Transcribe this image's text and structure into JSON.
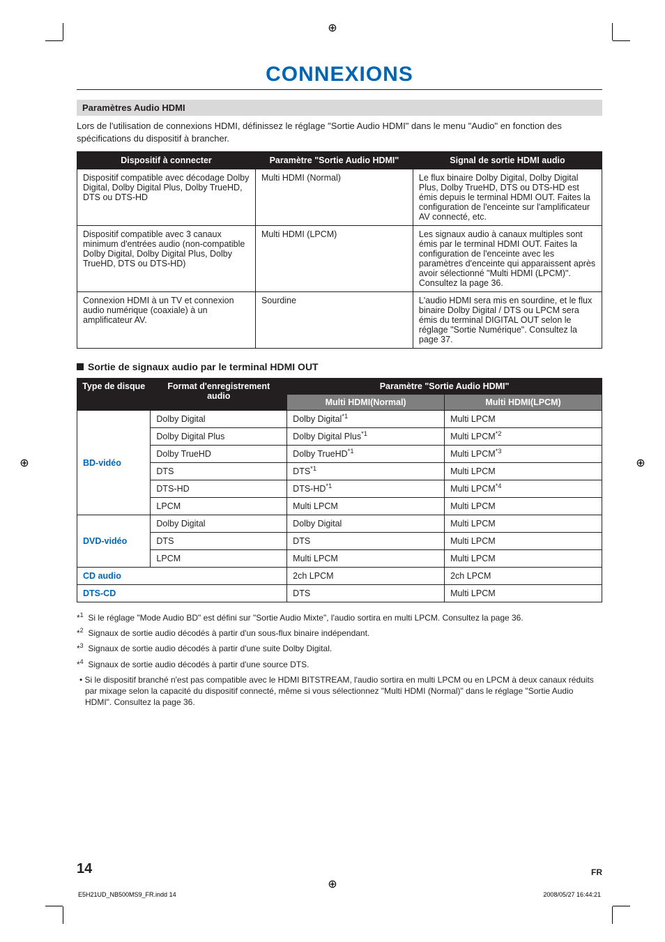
{
  "title": "CONNEXIONS",
  "section_bar": "Paramètres Audio HDMI",
  "intro": "Lors de l'utilisation de connexions HDMI, définissez le réglage \"Sortie Audio HDMI\" dans le menu \"Audio\" en fonction des spécifications du dispositif à brancher.",
  "table1": {
    "headers": [
      "Dispositif à connecter",
      "Paramètre \"Sortie Audio HDMI\"",
      "Signal de sortie HDMI audio"
    ],
    "rows": [
      {
        "device": "Dispositif compatible avec décodage Dolby Digital, Dolby Digital Plus, Dolby TrueHD, DTS ou DTS-HD",
        "param": "Multi HDMI (Normal)",
        "signal": "Le flux binaire Dolby Digital, Dolby Digital Plus, Dolby TrueHD, DTS ou DTS-HD est émis depuis le terminal HDMI OUT. Faites la configuration de l'enceinte sur l'amplificateur AV connecté, etc."
      },
      {
        "device": "Dispositif compatible avec 3 canaux minimum d'entrées audio (non-compatible Dolby Digital, Dolby Digital Plus, Dolby TrueHD, DTS ou DTS-HD)",
        "param": "Multi HDMI (LPCM)",
        "signal": "Les signaux audio à canaux multiples sont émis par le terminal HDMI OUT. Faites la configuration de l'enceinte avec les paramètres d'enceinte qui apparaissent après avoir sélectionné \"Multi HDMI (LPCM)\". Consultez la page 36."
      },
      {
        "device": "Connexion HDMI à un TV et connexion audio numérique (coaxiale) à un amplificateur AV.",
        "param": "Sourdine",
        "signal": "L'audio HDMI sera mis en sourdine, et le flux binaire Dolby Digital / DTS ou LPCM sera émis du terminal DIGITAL OUT selon le réglage \"Sortie Numérique\". Consultez la page 37."
      }
    ]
  },
  "subheading": "Sortie de signaux audio par le terminal HDMI OUT",
  "table2": {
    "header_top": {
      "disc": "Type de disque",
      "format": "Format d'enregistrement audio",
      "param": "Paramètre \"Sortie Audio HDMI\""
    },
    "header_sub": {
      "normal": "Multi HDMI(Normal)",
      "lpcm": "Multi HDMI(LPCM)"
    },
    "groups": [
      {
        "disc": "BD-vidéo",
        "rows": [
          {
            "fmt": "Dolby Digital",
            "normal": "Dolby Digital",
            "normal_sup": "*1",
            "lpcm": "Multi LPCM",
            "lpcm_sup": ""
          },
          {
            "fmt": "Dolby Digital Plus",
            "normal": "Dolby Digital Plus",
            "normal_sup": "*1",
            "lpcm": "Multi LPCM",
            "lpcm_sup": "*2"
          },
          {
            "fmt": "Dolby TrueHD",
            "normal": "Dolby TrueHD",
            "normal_sup": "*1",
            "lpcm": "Multi LPCM",
            "lpcm_sup": "*3"
          },
          {
            "fmt": "DTS",
            "normal": "DTS",
            "normal_sup": "*1",
            "lpcm": "Multi LPCM",
            "lpcm_sup": ""
          },
          {
            "fmt": "DTS-HD",
            "normal": "DTS-HD",
            "normal_sup": "*1",
            "lpcm": "Multi LPCM",
            "lpcm_sup": "*4"
          },
          {
            "fmt": "LPCM",
            "normal": "Multi LPCM",
            "normal_sup": "",
            "lpcm": "Multi LPCM",
            "lpcm_sup": ""
          }
        ]
      },
      {
        "disc": "DVD-vidéo",
        "rows": [
          {
            "fmt": "Dolby Digital",
            "normal": "Dolby Digital",
            "normal_sup": "",
            "lpcm": "Multi LPCM",
            "lpcm_sup": ""
          },
          {
            "fmt": "DTS",
            "normal": "DTS",
            "normal_sup": "",
            "lpcm": "Multi LPCM",
            "lpcm_sup": ""
          },
          {
            "fmt": "LPCM",
            "normal": "Multi LPCM",
            "normal_sup": "",
            "lpcm": "Multi LPCM",
            "lpcm_sup": ""
          }
        ]
      }
    ],
    "singles": [
      {
        "disc": "CD audio",
        "normal": "2ch LPCM",
        "lpcm": "2ch LPCM"
      },
      {
        "disc": "DTS-CD",
        "normal": "DTS",
        "lpcm": "Multi LPCM"
      }
    ]
  },
  "footnotes": {
    "n1": "Si le réglage \"Mode Audio BD\" est défini sur \"Sortie Audio Mixte\", l'audio sortira en multi LPCM. Consultez la page 36.",
    "n2": "Signaux de sortie audio décodés à partir d'un sous-flux binaire indépendant.",
    "n3": "Signaux de sortie audio décodés à partir d'une suite Dolby Digital.",
    "n4": "Signaux de sortie audio décodés à partir d'une source DTS.",
    "bullet": "Si le dispositif branché n'est pas compatible avec le HDMI BITSTREAM, l'audio sortira en multi LPCM ou en LPCM à deux canaux réduits par mixage selon la capacité du dispositif connecté, même si vous sélectionnez \"Multi HDMI (Normal)\" dans le réglage \"Sortie Audio HDMI\". Consultez la page 36."
  },
  "footer": {
    "page": "14",
    "lang": "FR",
    "print_left": "E5H21UD_NB500MS9_FR.indd   14",
    "print_right": "2008/05/27   16:44:21"
  },
  "labels": {
    "sup1": "*1",
    "sup2": "*2",
    "sup3": "*3",
    "sup4": "*4"
  }
}
